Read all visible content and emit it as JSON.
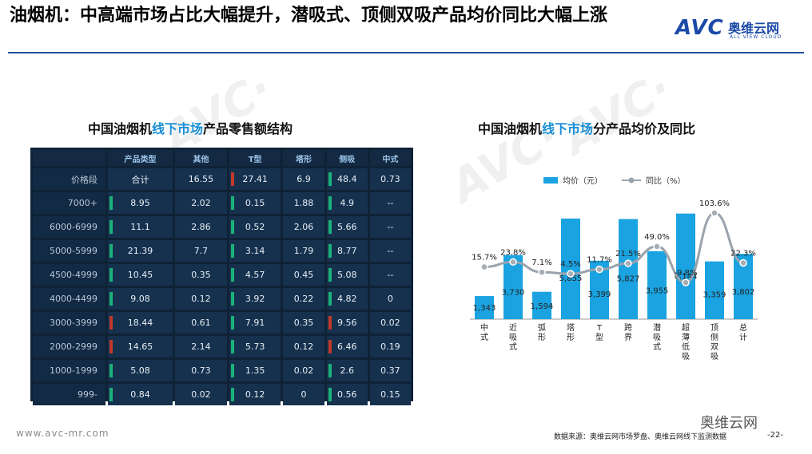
{
  "slide": {
    "title": "油烟机：中高端市场占比大幅提升，潜吸式、顶侧双吸产品均价同比大幅上涨",
    "logo_text": "AVC",
    "logo_cn": "奥维云网",
    "logo_en": "ALL VIEW CLOUD",
    "footer_url": "www.avc-mr.com",
    "footer_source": "数据来源：奥维云网市场罗盘、奥维云网线下监测数据",
    "page_number": "-22-",
    "wechat_label": "奥维云网"
  },
  "left_panel": {
    "title_prefix": "中国油烟机",
    "title_highlight": "线下市场",
    "title_suffix": "产品零售额结构"
  },
  "table": {
    "headers": [
      "",
      "产品类型",
      "其他",
      "T型",
      "塔形",
      "侧吸",
      "中式"
    ],
    "rows": [
      {
        "label": "价格段",
        "cells": [
          "合计",
          "16.55",
          "27.41",
          "6.9",
          "48.4",
          "0.73"
        ]
      },
      {
        "label": "7000+",
        "cells": [
          "8.95",
          "2.02",
          "0.15",
          "1.88",
          "4.9",
          "--"
        ]
      },
      {
        "label": "6000-6999",
        "cells": [
          "11.1",
          "2.86",
          "0.52",
          "2.06",
          "5.66",
          "--"
        ]
      },
      {
        "label": "5000-5999",
        "cells": [
          "21.39",
          "7.7",
          "3.14",
          "1.79",
          "8.77",
          "--"
        ]
      },
      {
        "label": "4500-4999",
        "cells": [
          "10.45",
          "0.35",
          "4.57",
          "0.45",
          "5.08",
          "--"
        ]
      },
      {
        "label": "4000-4499",
        "cells": [
          "9.08",
          "0.12",
          "3.92",
          "0.22",
          "4.82",
          "0"
        ]
      },
      {
        "label": "3000-3999",
        "cells": [
          "18.44",
          "0.61",
          "7.91",
          "0.35",
          "9.56",
          "0.02"
        ]
      },
      {
        "label": "2000-2999",
        "cells": [
          "14.65",
          "2.14",
          "5.73",
          "0.12",
          "6.46",
          "0.19"
        ]
      },
      {
        "label": "1000-1999",
        "cells": [
          "5.08",
          "0.73",
          "1.35",
          "0.02",
          "2.6",
          "0.37"
        ]
      },
      {
        "label": "999-",
        "cells": [
          "0.84",
          "0.02",
          "0.12",
          "0",
          "0.56",
          "0.15"
        ]
      }
    ],
    "colors": {
      "green": "#1bb27a",
      "red": "#c0392b"
    }
  },
  "right_panel": {
    "title_prefix": "中国油烟机",
    "title_highlight": "线下市场",
    "title_suffix": "分产品均价及同比"
  },
  "chart_data": {
    "type": "bar",
    "categories": [
      "中式",
      "近吸式",
      "弧形",
      "塔形",
      "T型",
      "跨界",
      "潜吸式",
      "超薄低吸",
      "顶侧双吸",
      "总计"
    ],
    "series": [
      {
        "name": "均价（元）",
        "type": "bar",
        "color": "#1aa3e0",
        "values": [
          1343,
          3730,
          1594,
          5855,
          3399,
          5827,
          3955,
          6144,
          3359,
          3802
        ],
        "labels": [
          "1,343",
          "3,730",
          "1,594",
          "5,855",
          "3,399",
          "5,827",
          "3,955",
          "6,144",
          "3,359",
          "3,802"
        ]
      },
      {
        "name": "同比（%）",
        "type": "line",
        "color": "#9aa3ad",
        "values": [
          15.7,
          23.8,
          7.1,
          4.5,
          11.7,
          21.5,
          49.0,
          -9.8,
          103.6,
          22.3
        ],
        "labels": [
          "15.7%",
          "23.8%",
          "7.1%",
          "4.5%",
          "11.7%",
          "21.5%",
          "49.0%",
          "-9.8%",
          "103.6%",
          "22.3%"
        ]
      }
    ],
    "legend_position": "top"
  }
}
